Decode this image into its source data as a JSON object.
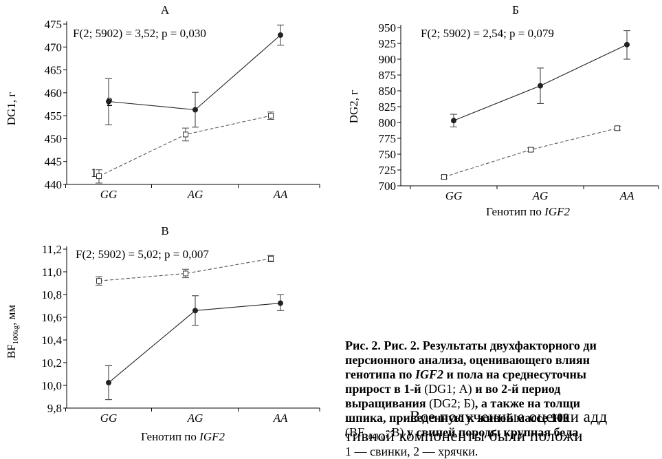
{
  "chart_data": [
    {
      "type": "line",
      "title": "А",
      "stat": "F(2; 5902) = 3,52; p = 0,030",
      "xlabel": "",
      "ylabel": "DG1, г",
      "categories": [
        "GG",
        "AG",
        "AA"
      ],
      "ylim": [
        440,
        475
      ],
      "yticks": [
        "440",
        "445",
        "450",
        "455",
        "460",
        "465",
        "470",
        "475"
      ],
      "series": [
        {
          "name": "1",
          "style": "dashed",
          "marker": "open-square",
          "values": [
            441.8,
            450.9,
            455.0
          ],
          "err_low": [
            440.3,
            449.5,
            454.2
          ],
          "err_high": [
            443.2,
            452.3,
            455.8
          ]
        },
        {
          "name": "2",
          "style": "solid",
          "marker": "filled-circle",
          "values": [
            458.1,
            456.3,
            472.6
          ],
          "err_low": [
            453.0,
            452.5,
            470.4
          ],
          "err_high": [
            463.1,
            460.1,
            474.8
          ]
        }
      ]
    },
    {
      "type": "line",
      "title": "Б",
      "stat": "F(2; 5902) = 2,54; p = 0,079",
      "xlabel_prefix": "Генотип по ",
      "xlabel_gene": "IGF2",
      "ylabel": "DG2, г",
      "categories": [
        "GG",
        "AG",
        "AA"
      ],
      "ylim": [
        700,
        950
      ],
      "yticks": [
        "700",
        "725",
        "750",
        "775",
        "800",
        "825",
        "850",
        "875",
        "900",
        "925",
        "950"
      ],
      "series": [
        {
          "name": "1",
          "style": "dashed",
          "marker": "open-square",
          "values": [
            714,
            757,
            791
          ],
          "err_low": [
            711,
            754,
            788
          ],
          "err_high": [
            717,
            760,
            794
          ]
        },
        {
          "name": "2",
          "style": "solid",
          "marker": "filled-circle",
          "values": [
            803,
            858,
            923
          ],
          "err_low": [
            793,
            830,
            900
          ],
          "err_high": [
            813,
            886,
            945
          ]
        }
      ]
    },
    {
      "type": "line",
      "title": "В",
      "stat": "F(2; 5902) = 5,02; p = 0,007",
      "xlabel_prefix": "Генотип по ",
      "xlabel_gene": "IGF2",
      "ylabel_main": "BF",
      "ylabel_sub": "100kg",
      "ylabel_unit": ", мм",
      "categories": [
        "GG",
        "AG",
        "AA"
      ],
      "ylim": [
        9.8,
        11.3
      ],
      "yticks": [
        "9,8",
        "10,0",
        "10,2",
        "10,4",
        "10,6",
        "10,8",
        "11,0",
        "11,2"
      ],
      "series": [
        {
          "name": "1",
          "style": "dashed",
          "marker": "open-square",
          "values": [
            11.0,
            11.07,
            11.21
          ],
          "err_low": [
            10.96,
            11.03,
            11.18
          ],
          "err_high": [
            11.04,
            11.11,
            11.24
          ]
        },
        {
          "name": "2",
          "style": "solid",
          "marker": "filled-circle",
          "values": [
            10.04,
            10.72,
            10.79
          ],
          "err_low": [
            9.88,
            10.58,
            10.72
          ],
          "err_high": [
            10.2,
            10.86,
            10.87
          ]
        }
      ]
    }
  ],
  "caption": {
    "line1": "Рис. 2. Рис. 2. Результаты двухфакторного ди",
    "line2": "персионного анализа, оценивающего влиян",
    "line3_a": "генотипа по ",
    "line3_gene": "IGF2",
    "line3_b": " и пола на среднесуточны",
    "line4_a": "прирост в 1-й ",
    "line4_b": "(DG1; А)",
    "line4_c": " и во 2-й период",
    "line5_a": "выращивания ",
    "line5_b": "(DG2; Б)",
    "line5_c": ", а также на толщи",
    "line6": "шпика, приведенную к живой массе 100",
    "line7_a": "(BF",
    "line7_sub": "100kg",
    "line7_b": "; В)",
    "line7_c": " у  свиней породы крупная бела",
    "line8": "1 — свинки, 2 — хрячки."
  },
  "body_text": {
    "line1": "Все полученные оценки адд",
    "line2": "тивной компоненты были положи"
  }
}
